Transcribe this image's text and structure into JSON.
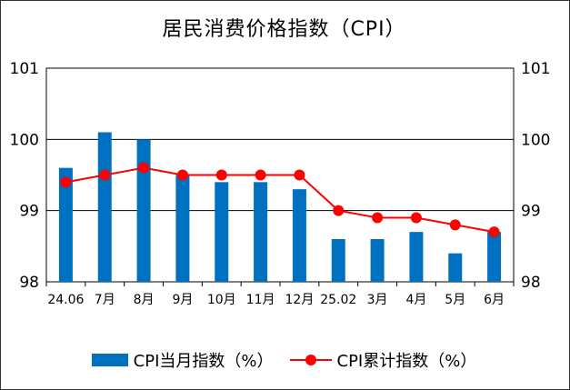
{
  "chart_data": {
    "type": "bar",
    "title": "居民消费价格指数（CPI）",
    "categories": [
      "24.06",
      "7月",
      "8月",
      "9月",
      "10月",
      "11月",
      "12月",
      "25.02",
      "3月",
      "4月",
      "5月",
      "6月"
    ],
    "series": [
      {
        "name": "CPI当月指数（%）",
        "type": "bar",
        "color": "#0070C0",
        "values": [
          99.6,
          100.1,
          100.0,
          99.5,
          99.4,
          99.4,
          99.3,
          98.6,
          98.6,
          98.7,
          98.4,
          98.7
        ]
      },
      {
        "name": "CPI累计指数（%）",
        "type": "line",
        "color": "#FF0000",
        "values": [
          99.4,
          99.5,
          99.6,
          99.5,
          99.5,
          99.5,
          99.5,
          99.0,
          98.9,
          98.9,
          98.8,
          98.7
        ]
      }
    ],
    "ylim": [
      98,
      101
    ],
    "yticks": [
      "98",
      "99",
      "100",
      "101"
    ],
    "y2ticks": [
      "98",
      "99",
      "100",
      "101"
    ],
    "grid": true,
    "legend": "bottom"
  }
}
